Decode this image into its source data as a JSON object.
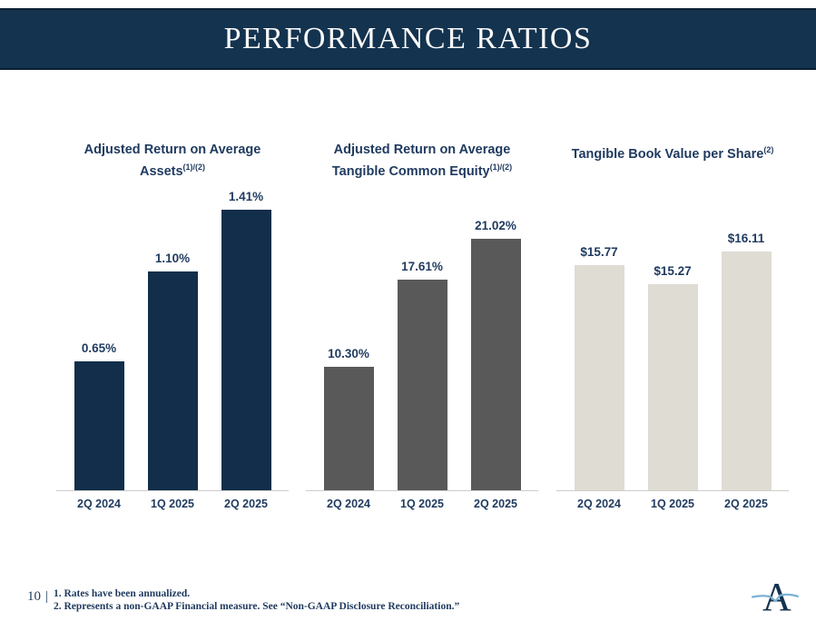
{
  "slide": {
    "title": "PERFORMANCE RATIOS",
    "page_number": "10",
    "page_separator": "|",
    "footnotes": [
      "1. Rates have been annualized.",
      "2. Represents a non-GAAP Financial measure. See “Non-GAAP Disclosure Reconciliation.”"
    ],
    "logo_letter": "A"
  },
  "colors": {
    "banner_background": "#14334f",
    "banner_border": "#0d2033",
    "banner_text": "#fafafa",
    "navy_bar": "#122e4a",
    "gray_bar": "#595959",
    "beige_bar": "#dfdcd4",
    "label_navy": "#1f3a5f",
    "axis_gray": "#cfcecb",
    "logo_navy": "#14334f",
    "logo_blue": "#7cb1d3"
  },
  "chart_data": [
    {
      "type": "bar",
      "title": "Adjusted Return on Average Assets(1)/(2)",
      "title_lines": [
        "Adjusted Return on Average",
        "Assets"
      ],
      "title_superscript": "(1)/(2)",
      "categories": [
        "2Q 2024",
        "1Q 2025",
        "2Q 2025"
      ],
      "values": [
        0.65,
        1.1,
        1.41
      ],
      "value_labels": [
        "0.65%",
        "1.10%",
        "1.41%"
      ],
      "bar_color": "#122e4a",
      "ylim": [
        0,
        1.415
      ],
      "grid": false,
      "legend": "none"
    },
    {
      "type": "bar",
      "title": "Adjusted Return on Average Tangible Common Equity(1)/(2)",
      "title_lines": [
        "Adjusted Return on Average",
        "Tangible Common Equity"
      ],
      "title_superscript": "(1)/(2)",
      "categories": [
        "2Q 2024",
        "1Q 2025",
        "2Q 2025"
      ],
      "values": [
        10.3,
        17.61,
        21.02
      ],
      "value_labels": [
        "10.30%",
        "17.61%",
        "21.02%"
      ],
      "bar_color": "#595959",
      "ylim": [
        0,
        23.55
      ],
      "grid": false,
      "legend": "none"
    },
    {
      "type": "bar",
      "title": "Tangible Book Value per Share(2)",
      "title_lines": [
        "Tangible Book Value per Share"
      ],
      "title_superscript": "(2)",
      "categories": [
        "2Q 2024",
        "1Q 2025",
        "2Q 2025"
      ],
      "values": [
        15.77,
        15.27,
        16.11
      ],
      "value_labels": [
        "$15.77",
        "$15.27",
        "$16.11"
      ],
      "bar_color": "#dfdcd4",
      "ylim": [
        10,
        17.2
      ],
      "grid": false,
      "legend": "none"
    }
  ]
}
